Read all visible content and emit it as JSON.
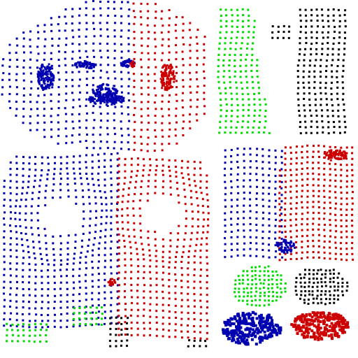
{
  "figure": {
    "description_free": true,
    "background": "#ffffff",
    "colors": {
      "blue": "#0000b0",
      "red": "#cc0000",
      "green": "#00dd00",
      "black": "#000000"
    },
    "icons": [
      "uv-point-marker"
    ],
    "islands": [
      {
        "name": "face-left-half",
        "color": "blue"
      },
      {
        "name": "face-right-half",
        "color": "red"
      },
      {
        "name": "torso-left-half",
        "color": "blue"
      },
      {
        "name": "torso-right-half",
        "color": "red"
      },
      {
        "name": "torso-bottom-green",
        "color": "green"
      },
      {
        "name": "torso-bottom-black",
        "color": "black"
      },
      {
        "name": "arm-green",
        "color": "green"
      },
      {
        "name": "arm-black",
        "color": "black"
      },
      {
        "name": "leg-blue",
        "color": "blue"
      },
      {
        "name": "leg-red",
        "color": "red"
      },
      {
        "name": "hand-green",
        "color": "green"
      },
      {
        "name": "hand-black",
        "color": "black"
      },
      {
        "name": "foot-blue",
        "color": "blue"
      },
      {
        "name": "foot-red",
        "color": "red"
      }
    ]
  }
}
